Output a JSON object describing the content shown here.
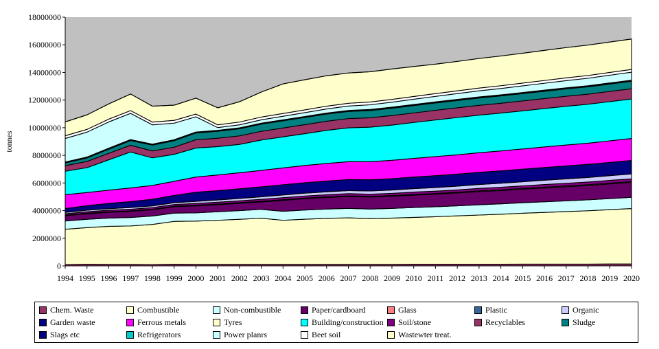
{
  "chart_data": {
    "type": "area",
    "stacked": true,
    "ylabel": "tonnes",
    "ylim": [
      0,
      18000000
    ],
    "y_ticks": [
      "0",
      "2000000",
      "4000000",
      "6000000",
      "8000000",
      "10000000",
      "12000000",
      "14000000",
      "16000000",
      "18000000"
    ],
    "x": [
      1994,
      1995,
      1996,
      1997,
      1998,
      1999,
      2000,
      2001,
      2002,
      2003,
      2004,
      2005,
      2006,
      2007,
      2008,
      2009,
      2010,
      2011,
      2012,
      2013,
      2014,
      2015,
      2016,
      2017,
      2018,
      2019,
      2020
    ],
    "x_tick_labels": [
      "1994",
      "1995",
      "1996",
      "1997",
      "1998",
      "1999",
      "2000",
      "2001",
      "2002",
      "2003",
      "2004",
      "2005",
      "2006",
      "2007",
      "2008",
      "2009",
      "2010",
      "2011",
      "2012",
      "2013",
      "2014",
      "2015",
      "2016",
      "2017",
      "2018",
      "2019",
      "2020"
    ],
    "plot_background": "#c0c0c0",
    "series": [
      {
        "name": "Chem. Waste",
        "color": "#993366",
        "values": [
          100000,
          120000,
          110000,
          110000,
          100000,
          120000,
          110000,
          110000,
          110000,
          110000,
          110000,
          110000,
          110000,
          110000,
          110000,
          110000,
          120000,
          120000,
          120000,
          120000,
          120000,
          130000,
          130000,
          130000,
          130000,
          140000,
          140000
        ]
      },
      {
        "name": "Wastewter treat.",
        "color": "#ffffcc",
        "values": [
          2550000,
          2650000,
          2750000,
          2780000,
          2900000,
          3100000,
          3130000,
          3190000,
          3260000,
          3340000,
          3190000,
          3270000,
          3330000,
          3370000,
          3310000,
          3350000,
          3390000,
          3440000,
          3500000,
          3560000,
          3620000,
          3680000,
          3740000,
          3800000,
          3860000,
          3930000,
          4010000
        ]
      },
      {
        "name": "Non-combustible",
        "color": "#ccffff",
        "values": [
          600000,
          600000,
          600000,
          610000,
          610000,
          600000,
          600000,
          620000,
          630000,
          640000,
          650000,
          660000,
          670000,
          680000,
          690000,
          700000,
          710000,
          720000,
          730000,
          740000,
          750000,
          760000,
          770000,
          780000,
          790000,
          800000,
          810000
        ]
      },
      {
        "name": "Paper/cardboard",
        "color": "#660066",
        "values": [
          380000,
          400000,
          420000,
          440000,
          450000,
          460000,
          500000,
          510000,
          530000,
          540000,
          790000,
          820000,
          840000,
          860000,
          870000,
          880000,
          900000,
          910000,
          930000,
          950000,
          960000,
          980000,
          1000000,
          1020000,
          1040000,
          1060000,
          1080000
        ]
      },
      {
        "name": "Glass",
        "color": "#ff8080",
        "values": [
          40000,
          40000,
          40000,
          40000,
          40000,
          40000,
          50000,
          50000,
          50000,
          50000,
          50000,
          50000,
          50000,
          50000,
          50000,
          50000,
          50000,
          50000,
          50000,
          60000,
          60000,
          60000,
          60000,
          60000,
          60000,
          60000,
          60000
        ]
      },
      {
        "name": "Soil/stone",
        "color": "#800080",
        "values": [
          100000,
          110000,
          110000,
          120000,
          120000,
          120000,
          130000,
          130000,
          130000,
          140000,
          150000,
          150000,
          150000,
          160000,
          160000,
          160000,
          170000,
          170000,
          170000,
          180000,
          180000,
          180000,
          190000,
          190000,
          190000,
          200000,
          200000
        ]
      },
      {
        "name": "Organic",
        "color": "#ccccff",
        "values": [
          100000,
          110000,
          110000,
          120000,
          120000,
          130000,
          150000,
          160000,
          170000,
          180000,
          190000,
          200000,
          210000,
          220000,
          230000,
          240000,
          250000,
          260000,
          270000,
          280000,
          290000,
          300000,
          310000,
          320000,
          330000,
          340000,
          350000
        ]
      },
      {
        "name": "Garden waste",
        "color": "#000080",
        "values": [
          280000,
          330000,
          380000,
          430000,
          480000,
          530000,
          660000,
          680000,
          700000,
          720000,
          740000,
          760000,
          780000,
          800000,
          810000,
          820000,
          840000,
          860000,
          870000,
          880000,
          900000,
          910000,
          920000,
          940000,
          950000,
          960000,
          980000
        ]
      },
      {
        "name": "Ferrous metals",
        "color": "#ff00ff",
        "values": [
          1000000,
          950000,
          960000,
          990000,
          1000000,
          1020000,
          1100000,
          1130000,
          1160000,
          1190000,
          1220000,
          1250000,
          1270000,
          1290000,
          1310000,
          1330000,
          1350000,
          1380000,
          1400000,
          1420000,
          1440000,
          1460000,
          1490000,
          1510000,
          1530000,
          1560000,
          1590000
        ]
      },
      {
        "name": "Building/construction",
        "color": "#00ffff",
        "values": [
          1700000,
          1800000,
          2200000,
          2600000,
          2000000,
          1950000,
          2100000,
          2050000,
          2050000,
          2200000,
          2250000,
          2300000,
          2400000,
          2450000,
          2500000,
          2550000,
          2600000,
          2650000,
          2700000,
          2720000,
          2740000,
          2760000,
          2780000,
          2800000,
          2820000,
          2840000,
          2860000
        ]
      },
      {
        "name": "Recyclables",
        "color": "#993366",
        "values": [
          400000,
          450000,
          470000,
          490000,
          500000,
          520000,
          600000,
          610000,
          620000,
          630000,
          640000,
          650000,
          660000,
          670000,
          680000,
          690000,
          690000,
          700000,
          700000,
          710000,
          710000,
          720000,
          720000,
          730000,
          730000,
          740000,
          740000
        ]
      },
      {
        "name": "Sludge",
        "color": "#008080",
        "values": [
          200000,
          250000,
          300000,
          340000,
          420000,
          470000,
          490000,
          500000,
          510000,
          520000,
          520000,
          520000,
          520000,
          520000,
          520000,
          530000,
          530000,
          530000,
          530000,
          530000,
          530000,
          530000,
          530000,
          530000,
          530000,
          530000,
          540000
        ]
      },
      {
        "name": "Plastic",
        "color": "#336699",
        "values": [
          30000,
          30000,
          30000,
          30000,
          30000,
          30000,
          30000,
          30000,
          30000,
          30000,
          30000,
          30000,
          30000,
          30000,
          40000,
          40000,
          40000,
          40000,
          40000,
          40000,
          40000,
          40000,
          40000,
          40000,
          40000,
          40000,
          40000
        ]
      },
      {
        "name": "Slags etc",
        "color": "#000080",
        "values": [
          20000,
          20000,
          20000,
          20000,
          20000,
          20000,
          20000,
          20000,
          20000,
          20000,
          20000,
          20000,
          20000,
          20000,
          20000,
          20000,
          20000,
          20000,
          20000,
          20000,
          20000,
          20000,
          20000,
          20000,
          20000,
          20000,
          20000
        ]
      },
      {
        "name": "Refrigerators",
        "color": "#00cccc",
        "values": [
          20000,
          20000,
          20000,
          20000,
          20000,
          20000,
          20000,
          20000,
          20000,
          20000,
          20000,
          20000,
          20000,
          20000,
          20000,
          20000,
          20000,
          20000,
          20000,
          20000,
          20000,
          20000,
          20000,
          20000,
          20000,
          20000,
          20000
        ]
      },
      {
        "name": "Power planrs",
        "color": "#ccffff",
        "values": [
          1700000,
          1800000,
          1900000,
          1900000,
          1400000,
          1200000,
          1100000,
          200000,
          220000,
          240000,
          260000,
          280000,
          300000,
          320000,
          340000,
          360000,
          380000,
          400000,
          420000,
          440000,
          460000,
          480000,
          500000,
          520000,
          540000,
          560000,
          580000
        ]
      },
      {
        "name": "Beet soil",
        "color": "#ffffff",
        "values": [
          200000,
          200000,
          200000,
          200000,
          200000,
          200000,
          200000,
          200000,
          200000,
          200000,
          200000,
          200000,
          200000,
          200000,
          200000,
          200000,
          200000,
          200000,
          200000,
          200000,
          200000,
          200000,
          200000,
          200000,
          200000,
          200000,
          200000
        ]
      },
      {
        "name": "Tyres",
        "color": "#ffffcc",
        "values": [
          1000000,
          1050000,
          1100000,
          1200000,
          1150000,
          1100000,
          1150000,
          1230000,
          1470000,
          1810000,
          2140000,
          2180000,
          2200000,
          2190000,
          2190000,
          2200000,
          2170000,
          2130000,
          2130000,
          2140000,
          2150000,
          2160000,
          2180000,
          2190000,
          2200000,
          2200000,
          2200000
        ]
      },
      {
        "name": "Combustible",
        "color": "#ffffcc",
        "values": [
          0,
          0,
          0,
          0,
          0,
          0,
          0,
          0,
          0,
          0,
          0,
          0,
          0,
          0,
          0,
          0,
          0,
          0,
          0,
          0,
          0,
          0,
          0,
          0,
          0,
          0,
          0
        ]
      }
    ],
    "legend": {
      "placement": "bottom",
      "entries": [
        {
          "name": "Chem. Waste",
          "color": "#993366"
        },
        {
          "name": "Combustible",
          "color": "#ffffcc"
        },
        {
          "name": "Non-combustible",
          "color": "#ccffff"
        },
        {
          "name": "Paper/cardboard",
          "color": "#660066"
        },
        {
          "name": "Glass",
          "color": "#ff8080"
        },
        {
          "name": "Plastic",
          "color": "#336699"
        },
        {
          "name": "Organic",
          "color": "#ccccff"
        },
        {
          "name": "Garden waste",
          "color": "#000080"
        },
        {
          "name": "Ferrous metals",
          "color": "#ff00ff"
        },
        {
          "name": "Tyres",
          "color": "#ffffcc"
        },
        {
          "name": "Building/construction",
          "color": "#00ffff"
        },
        {
          "name": "Soil/stone",
          "color": "#800080"
        },
        {
          "name": "Recyclables",
          "color": "#993366"
        },
        {
          "name": "Sludge",
          "color": "#008080"
        },
        {
          "name": "Slags etc",
          "color": "#000080"
        },
        {
          "name": "Refrigerators",
          "color": "#00cccc"
        },
        {
          "name": "Power planrs",
          "color": "#ccffff"
        },
        {
          "name": "Beet soil",
          "color": "#ffffff"
        },
        {
          "name": "Wastewter treat.",
          "color": "#ffffcc"
        }
      ]
    }
  }
}
